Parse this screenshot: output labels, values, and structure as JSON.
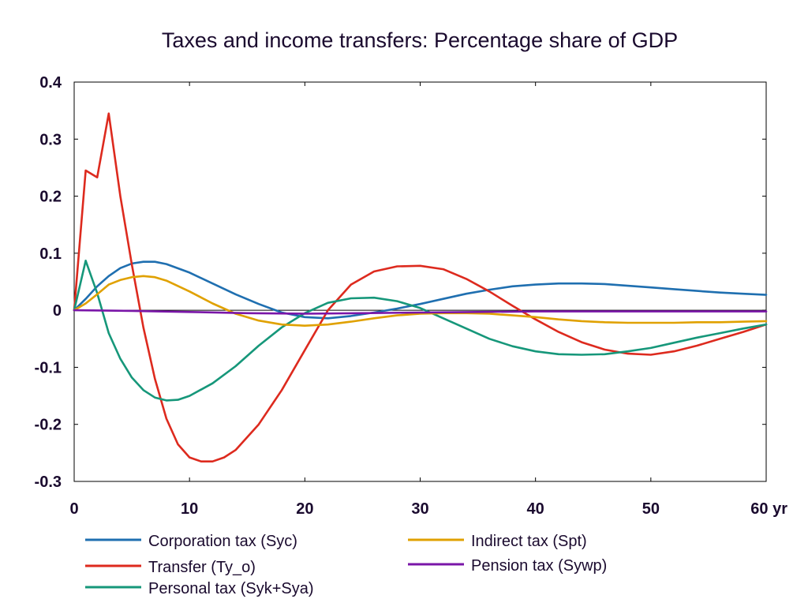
{
  "chart_data": {
    "type": "line",
    "title": "Taxes and income transfers: Percentage share of GDP",
    "xlabel": "",
    "ylabel": "",
    "xlim": [
      0,
      60
    ],
    "ylim": [
      -0.3,
      0.4
    ],
    "x_ticks": [
      {
        "value": 0,
        "label": "0"
      },
      {
        "value": 10,
        "label": "10"
      },
      {
        "value": 20,
        "label": "20"
      },
      {
        "value": 30,
        "label": "30"
      },
      {
        "value": 40,
        "label": "40"
      },
      {
        "value": 50,
        "label": "50"
      },
      {
        "value": 60,
        "label": "60 yr"
      }
    ],
    "y_ticks": [
      {
        "value": 0.4,
        "label": "0.4"
      },
      {
        "value": 0.3,
        "label": "0.3"
      },
      {
        "value": 0.2,
        "label": "0.2"
      },
      {
        "value": 0.1,
        "label": "0.1"
      },
      {
        "value": 0,
        "label": "0"
      },
      {
        "value": -0.1,
        "label": "-0.1"
      },
      {
        "value": -0.2,
        "label": "-0.2"
      },
      {
        "value": -0.3,
        "label": "-0.3"
      }
    ],
    "grid": false,
    "legend_position": "bottom",
    "series": [
      {
        "name": "Corporation tax (Syc)",
        "color": "#1f6fb0",
        "x": [
          0,
          1,
          2,
          3,
          4,
          5,
          6,
          7,
          8,
          10,
          12,
          14,
          16,
          18,
          20,
          22,
          24,
          26,
          28,
          30,
          32,
          34,
          36,
          38,
          40,
          42,
          44,
          46,
          48,
          50,
          52,
          54,
          56,
          58,
          60
        ],
        "y": [
          0,
          0.02,
          0.042,
          0.06,
          0.074,
          0.082,
          0.085,
          0.085,
          0.081,
          0.066,
          0.047,
          0.028,
          0.011,
          -0.004,
          -0.012,
          -0.014,
          -0.01,
          -0.004,
          0.003,
          0.011,
          0.02,
          0.029,
          0.036,
          0.042,
          0.045,
          0.047,
          0.047,
          0.046,
          0.043,
          0.04,
          0.037,
          0.034,
          0.031,
          0.029,
          0.027
        ]
      },
      {
        "name": "Transfer (Ty_o)",
        "color": "#dd2a1e",
        "x": [
          0,
          1,
          2,
          3,
          4,
          5,
          6,
          7,
          8,
          9,
          10,
          11,
          12,
          13,
          14,
          16,
          18,
          20,
          22,
          24,
          26,
          28,
          30,
          32,
          34,
          36,
          38,
          40,
          42,
          44,
          46,
          48,
          50,
          52,
          54,
          56,
          58,
          60
        ],
        "y": [
          0,
          0.245,
          0.233,
          0.345,
          0.2,
          0.08,
          -0.03,
          -0.12,
          -0.19,
          -0.235,
          -0.258,
          -0.265,
          -0.265,
          -0.258,
          -0.245,
          -0.2,
          -0.14,
          -0.07,
          0.0,
          0.045,
          0.068,
          0.077,
          0.078,
          0.072,
          0.055,
          0.033,
          0.008,
          -0.016,
          -0.038,
          -0.056,
          -0.069,
          -0.076,
          -0.078,
          -0.072,
          -0.062,
          -0.05,
          -0.038,
          -0.025
        ]
      },
      {
        "name": "Personal tax (Syk+Sya)",
        "color": "#16977a",
        "x": [
          0,
          1,
          2,
          3,
          4,
          5,
          6,
          7,
          8,
          9,
          10,
          12,
          14,
          16,
          18,
          20,
          22,
          24,
          26,
          28,
          30,
          32,
          34,
          36,
          38,
          40,
          42,
          44,
          46,
          48,
          50,
          52,
          54,
          56,
          58,
          60
        ],
        "y": [
          0,
          0.087,
          0.03,
          -0.04,
          -0.085,
          -0.118,
          -0.14,
          -0.153,
          -0.158,
          -0.157,
          -0.15,
          -0.128,
          -0.098,
          -0.062,
          -0.03,
          -0.005,
          0.013,
          0.021,
          0.022,
          0.016,
          0.004,
          -0.014,
          -0.032,
          -0.05,
          -0.063,
          -0.072,
          -0.077,
          -0.078,
          -0.077,
          -0.072,
          -0.066,
          -0.057,
          -0.048,
          -0.04,
          -0.032,
          -0.025
        ]
      },
      {
        "name": "Indirect tax (Spt)",
        "color": "#e0a100",
        "x": [
          0,
          1,
          2,
          3,
          4,
          5,
          6,
          7,
          8,
          10,
          12,
          14,
          16,
          18,
          20,
          22,
          24,
          26,
          28,
          30,
          32,
          34,
          36,
          38,
          40,
          42,
          44,
          46,
          48,
          50,
          52,
          54,
          56,
          58,
          60
        ],
        "y": [
          0,
          0.012,
          0.028,
          0.045,
          0.053,
          0.058,
          0.06,
          0.058,
          0.052,
          0.033,
          0.012,
          -0.006,
          -0.018,
          -0.025,
          -0.027,
          -0.025,
          -0.02,
          -0.014,
          -0.009,
          -0.006,
          -0.005,
          -0.005,
          -0.006,
          -0.009,
          -0.012,
          -0.016,
          -0.019,
          -0.021,
          -0.022,
          -0.022,
          -0.022,
          -0.021,
          -0.021,
          -0.02,
          -0.019
        ]
      },
      {
        "name": "Pension tax (Sywp)",
        "color": "#7a16a8",
        "x": [
          0,
          5,
          10,
          15,
          20,
          25,
          30,
          35,
          40,
          45,
          50,
          55,
          60
        ],
        "y": [
          0,
          -0.001,
          -0.003,
          -0.005,
          -0.006,
          -0.005,
          -0.004,
          -0.003,
          -0.002,
          -0.002,
          -0.002,
          -0.002,
          -0.002
        ]
      }
    ]
  }
}
